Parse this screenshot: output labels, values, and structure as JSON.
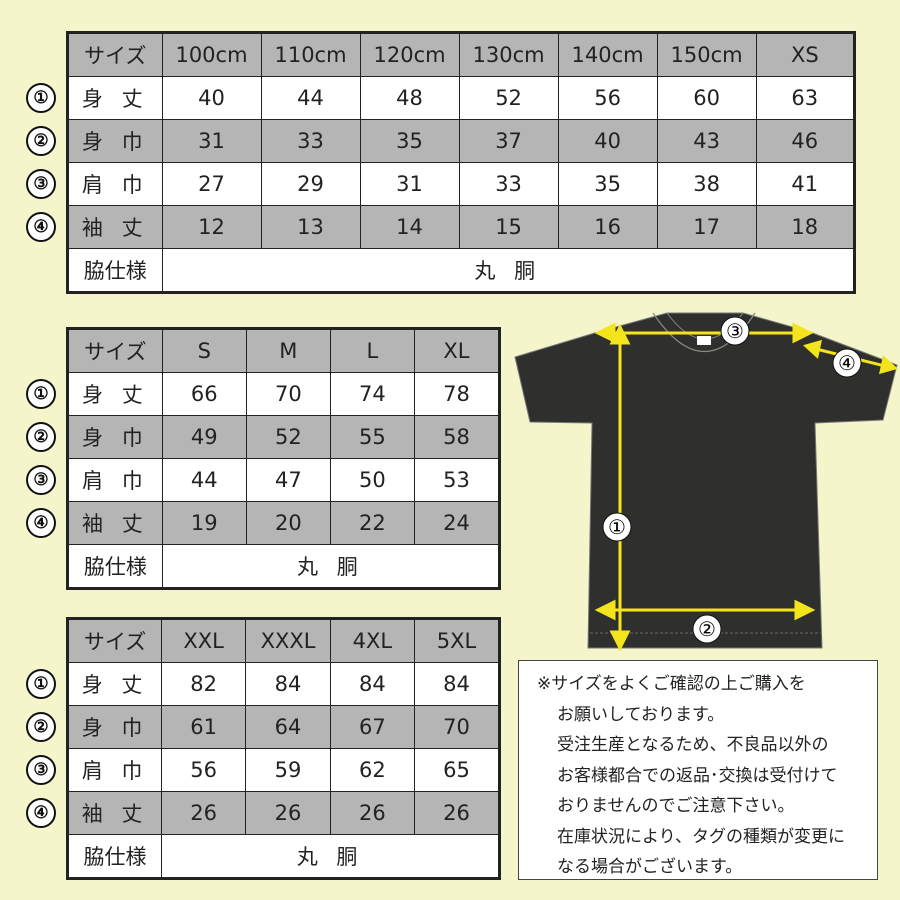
{
  "tables": [
    {
      "header": [
        "サイズ",
        "100cm",
        "110cm",
        "120cm",
        "130cm",
        "140cm",
        "150cm",
        "XS"
      ],
      "rows": [
        {
          "marker": "①",
          "label": "身 丈",
          "values": [
            "40",
            "44",
            "48",
            "52",
            "56",
            "60",
            "63"
          ]
        },
        {
          "marker": "②",
          "label": "身 巾",
          "values": [
            "31",
            "33",
            "35",
            "37",
            "40",
            "43",
            "46"
          ]
        },
        {
          "marker": "③",
          "label": "肩 巾",
          "values": [
            "27",
            "29",
            "31",
            "33",
            "35",
            "38",
            "41"
          ]
        },
        {
          "marker": "④",
          "label": "袖 丈",
          "values": [
            "12",
            "13",
            "14",
            "15",
            "16",
            "17",
            "18"
          ]
        }
      ],
      "side_label": "脇仕様",
      "side_value": "丸 胴"
    },
    {
      "header": [
        "サイズ",
        "S",
        "M",
        "L",
        "XL"
      ],
      "rows": [
        {
          "marker": "①",
          "label": "身 丈",
          "values": [
            "66",
            "70",
            "74",
            "78"
          ]
        },
        {
          "marker": "②",
          "label": "身 巾",
          "values": [
            "49",
            "52",
            "55",
            "58"
          ]
        },
        {
          "marker": "③",
          "label": "肩 巾",
          "values": [
            "44",
            "47",
            "50",
            "53"
          ]
        },
        {
          "marker": "④",
          "label": "袖 丈",
          "values": [
            "19",
            "20",
            "22",
            "24"
          ]
        }
      ],
      "side_label": "脇仕様",
      "side_value": "丸 胴"
    },
    {
      "header": [
        "サイズ",
        "XXL",
        "XXXL",
        "4XL",
        "5XL"
      ],
      "rows": [
        {
          "marker": "①",
          "label": "身 丈",
          "values": [
            "82",
            "84",
            "84",
            "84"
          ]
        },
        {
          "marker": "②",
          "label": "身 巾",
          "values": [
            "61",
            "64",
            "67",
            "70"
          ]
        },
        {
          "marker": "③",
          "label": "肩 巾",
          "values": [
            "56",
            "59",
            "62",
            "65"
          ]
        },
        {
          "marker": "④",
          "label": "袖 丈",
          "values": [
            "26",
            "26",
            "26",
            "26"
          ]
        }
      ],
      "side_label": "脇仕様",
      "side_value": "丸 胴"
    }
  ],
  "diagram": {
    "markers": [
      "①",
      "②",
      "③",
      "④"
    ],
    "shirt_color": "#2f302e",
    "arrow_color": "#f3e41c"
  },
  "note": {
    "lines": [
      "※サイズをよくご確認の上ご購入を",
      "お願いしております。",
      "受注生産となるため、不良品以外の",
      "お客様都合での返品･交換は受付けて",
      "おりませんのでご注意下さい。",
      "在庫状況により、タグの種類が変更に",
      "なる場合がございます。"
    ]
  },
  "colors": {
    "background": "#f4f5cb",
    "header_gray": "#b5b5b5"
  }
}
